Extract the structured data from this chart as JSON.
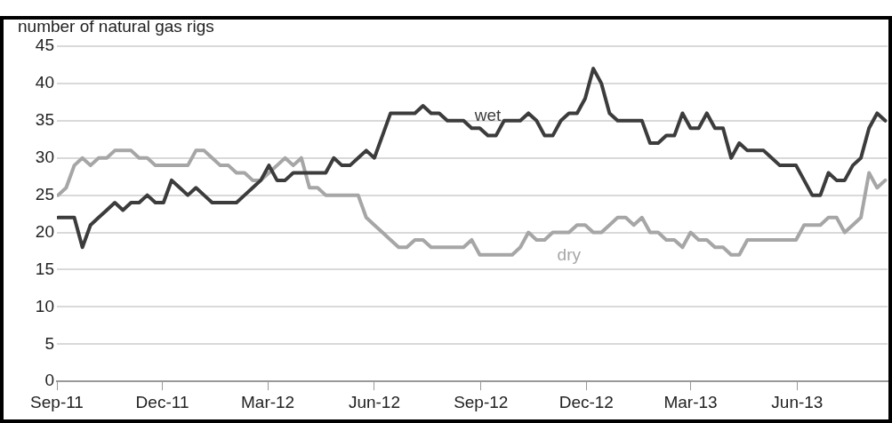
{
  "chart_data": {
    "type": "line",
    "ylabel": "number of natural gas rigs",
    "x": [
      "2011-09-02",
      "2011-09-09",
      "2011-09-16",
      "2011-09-23",
      "2011-09-30",
      "2011-10-07",
      "2011-10-14",
      "2011-10-21",
      "2011-10-28",
      "2011-11-04",
      "2011-11-11",
      "2011-11-18",
      "2011-11-25",
      "2011-12-02",
      "2011-12-09",
      "2011-12-16",
      "2011-12-23",
      "2011-12-30",
      "2012-01-06",
      "2012-01-13",
      "2012-01-20",
      "2012-01-27",
      "2012-02-03",
      "2012-02-10",
      "2012-02-17",
      "2012-02-24",
      "2012-03-02",
      "2012-03-09",
      "2012-03-16",
      "2012-03-23",
      "2012-03-30",
      "2012-04-06",
      "2012-04-13",
      "2012-04-20",
      "2012-04-27",
      "2012-05-04",
      "2012-05-11",
      "2012-05-18",
      "2012-05-25",
      "2012-06-01",
      "2012-06-08",
      "2012-06-15",
      "2012-06-22",
      "2012-06-29",
      "2012-07-06",
      "2012-07-13",
      "2012-07-20",
      "2012-07-27",
      "2012-08-03",
      "2012-08-10",
      "2012-08-17",
      "2012-08-24",
      "2012-08-31",
      "2012-09-07",
      "2012-09-14",
      "2012-09-21",
      "2012-09-28",
      "2012-10-05",
      "2012-10-12",
      "2012-10-19",
      "2012-10-26",
      "2012-11-02",
      "2012-11-09",
      "2012-11-16",
      "2012-11-23",
      "2012-11-30",
      "2012-12-07",
      "2012-12-14",
      "2012-12-21",
      "2012-12-28",
      "2013-01-04",
      "2013-01-11",
      "2013-01-18",
      "2013-01-25",
      "2013-02-01",
      "2013-02-08",
      "2013-02-15",
      "2013-02-22",
      "2013-03-01",
      "2013-03-08",
      "2013-03-15",
      "2013-03-22",
      "2013-03-29",
      "2013-04-05",
      "2013-04-12",
      "2013-04-19",
      "2013-04-26",
      "2013-05-03",
      "2013-05-10",
      "2013-05-17",
      "2013-05-24",
      "2013-05-31",
      "2013-06-07",
      "2013-06-14",
      "2013-06-21",
      "2013-06-28",
      "2013-07-05",
      "2013-07-12",
      "2013-07-19",
      "2013-07-26",
      "2013-08-02",
      "2013-08-09",
      "2013-08-16"
    ],
    "series": [
      {
        "name": "wet",
        "color": "#3c3c3c",
        "values": [
          22,
          22,
          22,
          18,
          21,
          22,
          23,
          24,
          23,
          24,
          24,
          25,
          24,
          24,
          27,
          26,
          25,
          26,
          25,
          24,
          24,
          24,
          24,
          25,
          26,
          27,
          29,
          27,
          27,
          28,
          28,
          28,
          28,
          28,
          30,
          29,
          29,
          30,
          31,
          30,
          33,
          36,
          36,
          36,
          36,
          37,
          36,
          36,
          35,
          35,
          35,
          34,
          34,
          33,
          33,
          35,
          35,
          35,
          36,
          35,
          33,
          33,
          35,
          36,
          36,
          38,
          42,
          40,
          36,
          35,
          35,
          35,
          35,
          32,
          32,
          33,
          33,
          36,
          34,
          34,
          36,
          34,
          34,
          30,
          32,
          31,
          31,
          31,
          30,
          29,
          29,
          29,
          27,
          25,
          25,
          28,
          27,
          27,
          29,
          30,
          34,
          36,
          35
        ]
      },
      {
        "name": "dry",
        "color": "#a6a6a6",
        "values": [
          25,
          26,
          29,
          30,
          29,
          30,
          30,
          31,
          31,
          31,
          30,
          30,
          29,
          29,
          29,
          29,
          29,
          31,
          31,
          30,
          29,
          29,
          28,
          28,
          27,
          27,
          28,
          29,
          30,
          29,
          30,
          26,
          26,
          25,
          25,
          25,
          25,
          25,
          22,
          21,
          20,
          19,
          18,
          18,
          19,
          19,
          18,
          18,
          18,
          18,
          18,
          19,
          17,
          17,
          17,
          17,
          17,
          18,
          20,
          19,
          19,
          20,
          20,
          20,
          21,
          21,
          20,
          20,
          21,
          22,
          22,
          21,
          22,
          20,
          20,
          19,
          19,
          18,
          20,
          19,
          19,
          18,
          18,
          17,
          17,
          19,
          19,
          19,
          19,
          19,
          19,
          19,
          21,
          21,
          21,
          22,
          22,
          20,
          21,
          22,
          28,
          26,
          27
        ]
      }
    ],
    "xlim": [
      "2011-09-01",
      "2013-08-18"
    ],
    "xticks": [
      {
        "value": "2011-09-01",
        "label": "Sep-11"
      },
      {
        "value": "2011-12-01",
        "label": "Dec-11"
      },
      {
        "value": "2012-03-01",
        "label": "Mar-12"
      },
      {
        "value": "2012-06-01",
        "label": "Jun-12"
      },
      {
        "value": "2012-09-01",
        "label": "Sep-12"
      },
      {
        "value": "2012-12-01",
        "label": "Dec-12"
      },
      {
        "value": "2013-03-01",
        "label": "Mar-13"
      },
      {
        "value": "2013-06-01",
        "label": "Jun-13"
      }
    ],
    "ylim": [
      0,
      45
    ],
    "yticks": [
      0,
      5,
      10,
      15,
      20,
      25,
      30,
      35,
      40,
      45
    ],
    "grid": "y",
    "legend": false,
    "marker": "none",
    "line_style": "solid"
  }
}
